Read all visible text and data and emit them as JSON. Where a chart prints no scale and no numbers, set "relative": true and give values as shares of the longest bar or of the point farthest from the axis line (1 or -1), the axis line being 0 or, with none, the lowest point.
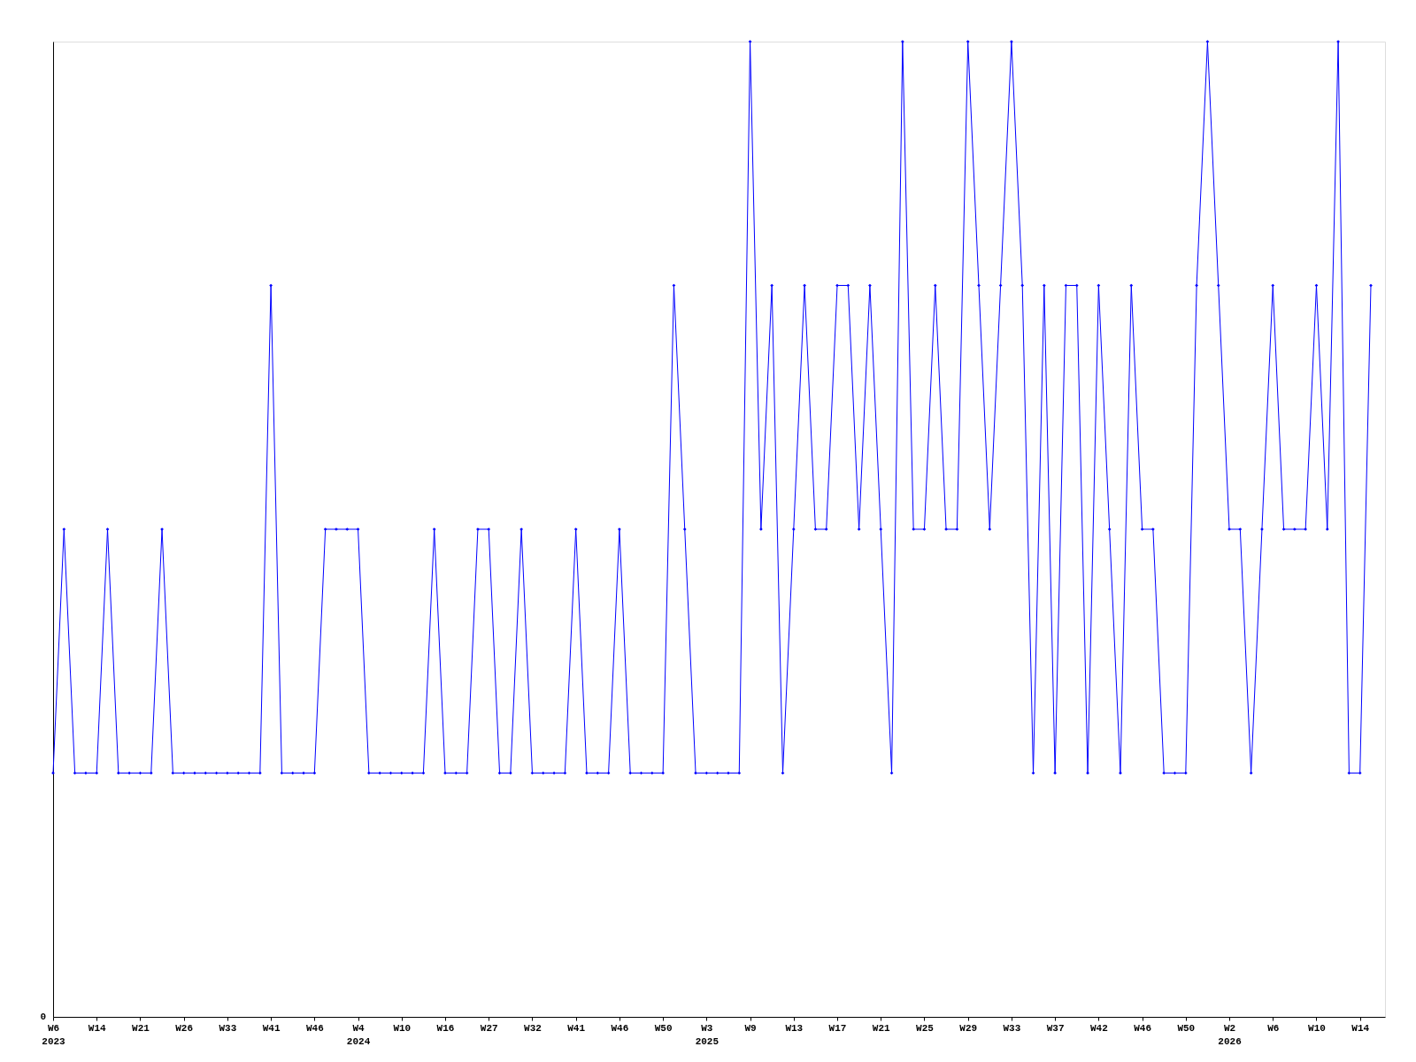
{
  "chart_data": {
    "type": "line",
    "relative": true,
    "marker": "diamond",
    "line_style": "solid",
    "grid": false,
    "categories": [
      "W6\n2023",
      null,
      null,
      null,
      "W14",
      null,
      null,
      null,
      "W21",
      null,
      null,
      null,
      "W26",
      null,
      null,
      null,
      "W33",
      null,
      null,
      null,
      "W41",
      null,
      null,
      null,
      "W46",
      null,
      null,
      null,
      "W4\n2024",
      null,
      null,
      null,
      "W10",
      null,
      null,
      null,
      "W16",
      null,
      null,
      null,
      "W27",
      null,
      null,
      null,
      "W32",
      null,
      null,
      null,
      "W41",
      null,
      null,
      null,
      "W46",
      null,
      null,
      null,
      "W50",
      null,
      null,
      null,
      "W3\n2025",
      null,
      null,
      null,
      "W9",
      null,
      null,
      null,
      "W13",
      null,
      null,
      null,
      "W17",
      null,
      null,
      null,
      "W21",
      null,
      null,
      null,
      "W25",
      null,
      null,
      null,
      "W29",
      null,
      null,
      null,
      "W33",
      null,
      null,
      null,
      "W37",
      null,
      null,
      null,
      "W42",
      null,
      null,
      null,
      "W46",
      null,
      null,
      null,
      "W50",
      null,
      null,
      null,
      "W2\n2026",
      null,
      null,
      null,
      "W6",
      null,
      null,
      null,
      "W10",
      null,
      null,
      null,
      "W14",
      null
    ],
    "series": [
      {
        "color": "#0000ff",
        "values": [
          0.25,
          0.5,
          0.25,
          0.25,
          0.25,
          0.5,
          0.25,
          0.25,
          0.25,
          0.25,
          0.5,
          0.25,
          0.25,
          0.25,
          0.25,
          0.25,
          0.25,
          0.25,
          0.25,
          0.25,
          0.75,
          0.25,
          0.25,
          0.25,
          0.25,
          0.5,
          0.5,
          0.5,
          0.5,
          0.25,
          0.25,
          0.25,
          0.25,
          0.25,
          0.25,
          0.5,
          0.25,
          0.25,
          0.25,
          0.5,
          0.5,
          0.25,
          0.25,
          0.5,
          0.25,
          0.25,
          0.25,
          0.25,
          0.5,
          0.25,
          0.25,
          0.25,
          0.5,
          0.25,
          0.25,
          0.25,
          0.25,
          0.75,
          0.5,
          0.25,
          0.25,
          0.25,
          0.25,
          0.25,
          1,
          0.5,
          0.75,
          0.25,
          0.5,
          0.75,
          0.5,
          0.5,
          0.75,
          0.75,
          0.5,
          0.75,
          0.5,
          0.25,
          1,
          0.5,
          0.5,
          0.75,
          0.5,
          0.5,
          1,
          0.75,
          0.5,
          0.75,
          1,
          0.75,
          0.25,
          0.75,
          0.25,
          0.75,
          0.75,
          0.25,
          0.75,
          0.5,
          0.25,
          0.75,
          0.5,
          0.5,
          0.25,
          0.25,
          0.25,
          0.75,
          1,
          0.75,
          0.5,
          0.5,
          0.25,
          0.5,
          0.75,
          0.5,
          0.5,
          0.5,
          0.75,
          0.5,
          1,
          0.25,
          0.25,
          0.75
        ]
      }
    ],
    "annotations": [
      "0"
    ]
  }
}
